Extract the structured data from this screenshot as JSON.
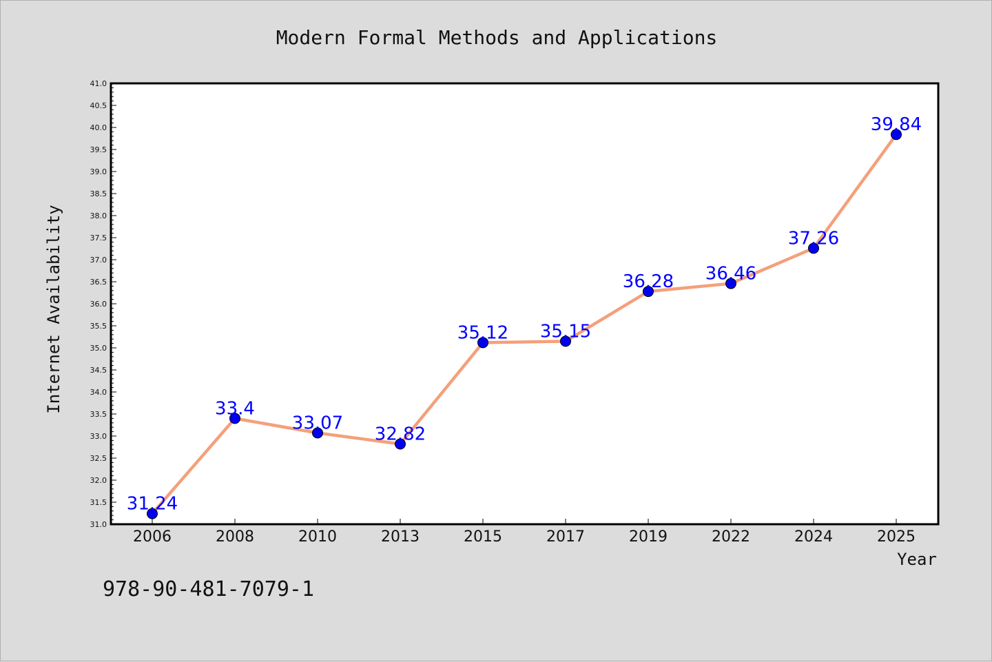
{
  "chart_data": {
    "type": "line",
    "title": "Modern Formal Methods and Applications",
    "xlabel": "Year",
    "ylabel": "Internet Availability",
    "categories": [
      "2006",
      "2008",
      "2010",
      "2013",
      "2015",
      "2017",
      "2019",
      "2022",
      "2024",
      "2025"
    ],
    "series": [
      {
        "values": [
          31.24,
          33.4,
          33.07,
          32.82,
          35.12,
          35.15,
          36.28,
          36.46,
          37.26,
          39.84
        ],
        "labels": [
          "31.24",
          "33.4",
          "33.07",
          "32.82",
          "35.12",
          "35.15",
          "36.28",
          "36.46",
          "37.26",
          "39.84"
        ],
        "line_color": "#f4a07a",
        "marker_color": "#0000ee",
        "label_color": "#0000ff"
      }
    ],
    "ylim": [
      31.0,
      41.0
    ],
    "yticks": [
      "31.0",
      "31.5",
      "32.0",
      "32.5",
      "33.0",
      "33.5",
      "34.0",
      "34.5",
      "35.0",
      "35.5",
      "36.0",
      "36.5",
      "37.0",
      "37.5",
      "38.0",
      "38.5",
      "39.0",
      "39.5",
      "40.0",
      "40.5",
      "41.0"
    ],
    "grid": false,
    "legend": "none"
  },
  "footer": {
    "isbn": "978-90-481-7079-1"
  },
  "colors": {
    "background": "#dcdcdc",
    "plot_background": "#ffffff"
  }
}
